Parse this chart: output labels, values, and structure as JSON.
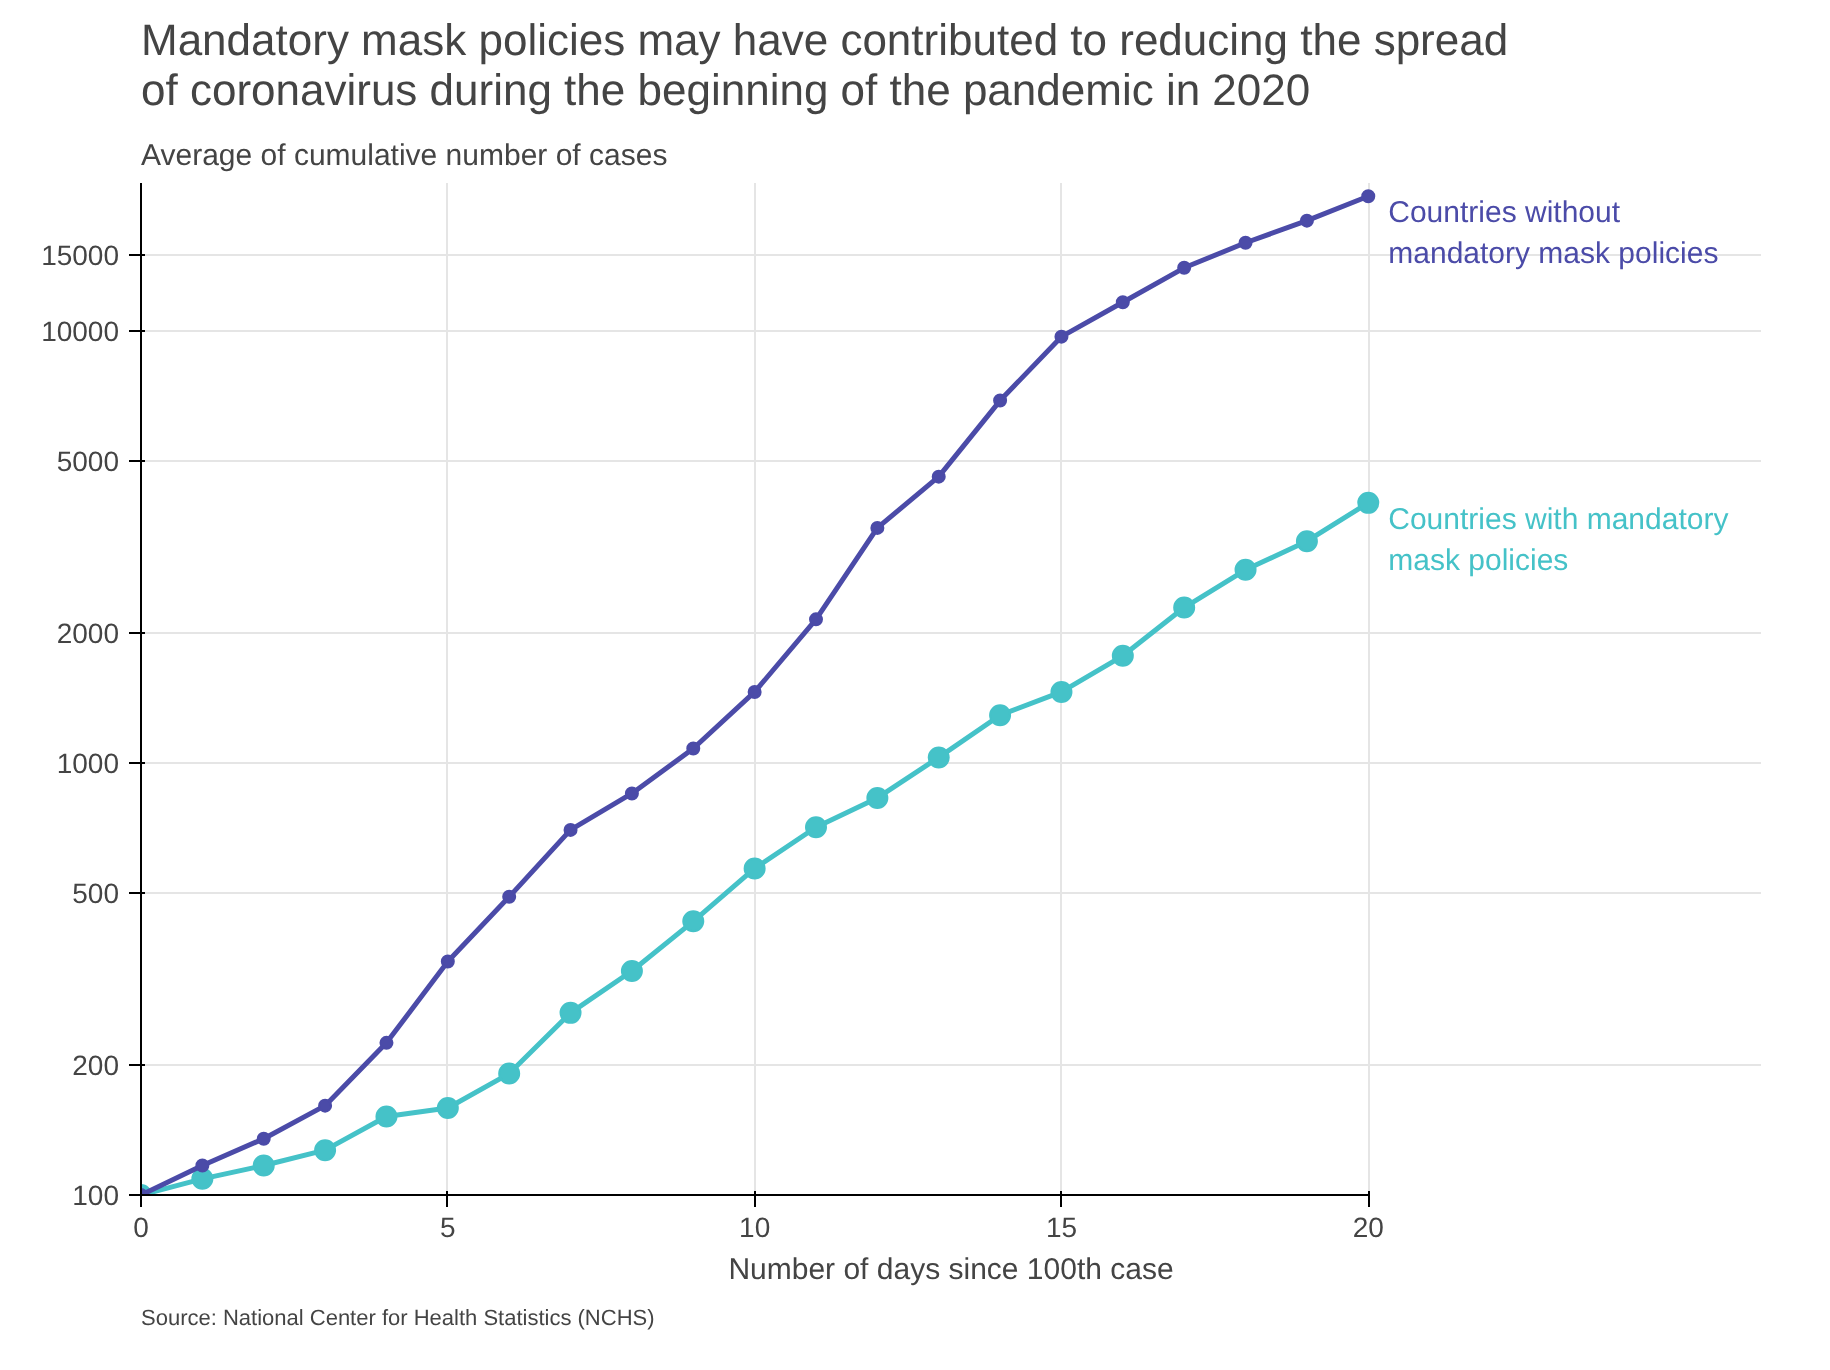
{
  "chart_data": {
    "type": "line",
    "title": "Mandatory mask policies may have contributed to reducing the spread of coronavirus during the beginning of the pandemic in 2020",
    "ylabel": "Average of cumulative number of cases",
    "xlabel": "Number of days since 100th case",
    "x": [
      0,
      1,
      2,
      3,
      4,
      5,
      6,
      7,
      8,
      9,
      10,
      11,
      12,
      13,
      14,
      15,
      16,
      17,
      18,
      19,
      20
    ],
    "series": [
      {
        "name": "Countries without mandatory mask policies",
        "color": "#4b4ba8",
        "values": [
          100,
          117,
          135,
          161,
          225,
          347,
          490,
          700,
          850,
          1080,
          1460,
          2150,
          3500,
          4600,
          6900,
          9700,
          11650,
          14000,
          16000,
          18000,
          20500
        ]
      },
      {
        "name": "Countries with mandatory mask policies",
        "color": "#45c2c8",
        "values": [
          100,
          109,
          117,
          127,
          152,
          159,
          191,
          264,
          330,
          430,
          570,
          710,
          830,
          1030,
          1290,
          1460,
          1770,
          2290,
          2800,
          3260,
          4000
        ]
      }
    ],
    "log": "y",
    "xlim": [
      0,
      20
    ],
    "xticks": [
      0,
      5,
      10,
      15,
      20
    ],
    "ylim": [
      100,
      22000
    ],
    "yticks": [
      100,
      200,
      500,
      1000,
      2000,
      5000,
      10000,
      15000
    ],
    "grid": true,
    "marker": "circle",
    "line_style": "solid",
    "annotations": [
      "Source: National Center for Health Statistics (NCHS)"
    ]
  }
}
